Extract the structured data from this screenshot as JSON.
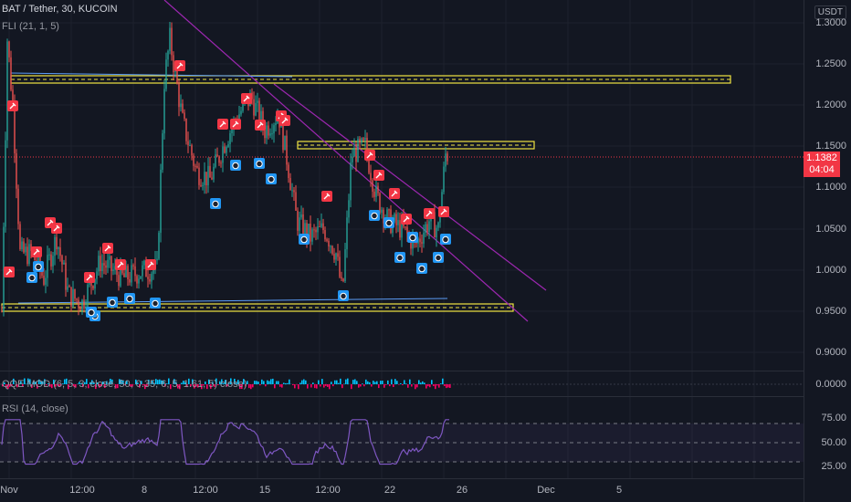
{
  "legend": {
    "main_title": "BAT / Tether, 30, KUCOIN",
    "indicator_1": "FLI (21, 1, 5)",
    "indicator_2": "QQE MOD (6, 5, 3, close, 50, 0.35, 6, 5, 1.61, 5) close)",
    "indicator_3": "RSI (14, close)"
  },
  "price_axis": {
    "currency": "USDT",
    "ticks": [
      "1.3000",
      "1.2500",
      "1.2000",
      "1.1500",
      "1.1000",
      "1.0500",
      "1.0000",
      "0.9500",
      "0.9000"
    ],
    "last_price": "1.1382",
    "countdown": "04:04"
  },
  "qqe_axis": {
    "ticks": [
      "0.0000"
    ]
  },
  "rsi_axis": {
    "ticks": [
      "75.00",
      "50.00",
      "25.00"
    ]
  },
  "time_axis": {
    "ticks": [
      "Nov",
      "12:00",
      "8",
      "12:00",
      "15",
      "12:00",
      "22",
      "26",
      "Dec",
      "5"
    ]
  },
  "colors": {
    "background": "#131722",
    "up": "#26a69a",
    "down": "#ef5350",
    "trendline": "#9c27b0",
    "support_zone": "#f0e442",
    "rsi": "#7e57c2",
    "signal_sell": "#f23645",
    "signal_buy": "#2196f3",
    "last_price_label": "#f23645"
  }
}
